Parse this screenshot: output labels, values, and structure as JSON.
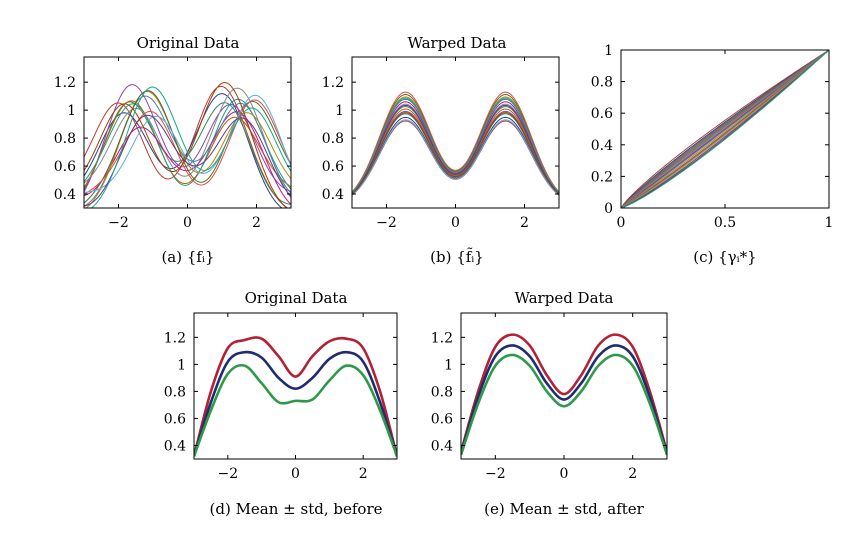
{
  "figure": {
    "panels": [
      {
        "title": "Original Data",
        "caption": "(a) {fᵢ}"
      },
      {
        "title": "Warped Data",
        "caption": "(b) {f̃ᵢ}"
      },
      {
        "title": "",
        "caption": "(c) {γᵢ*}"
      },
      {
        "title": "Original Data",
        "caption": "(d) Mean ± std, before"
      },
      {
        "title": "Warped Data",
        "caption": "(e) Mean ± std, after"
      }
    ]
  },
  "colors": {
    "mean": "#1f2d6e",
    "upper": "#b22234",
    "lower": "#2e9a48",
    "family": [
      "#c0392b",
      "#2c3e8f",
      "#2e8b57",
      "#8e44ad",
      "#d35400",
      "#16a085",
      "#7f8c8d",
      "#c71585",
      "#4682b4",
      "#b8860b",
      "#556b2f",
      "#e74c3c",
      "#5dade2",
      "#a04000",
      "#6c3483",
      "#17a589"
    ]
  },
  "chart_data": [
    {
      "type": "line",
      "title": "Original Data",
      "caption": "(a) {fᵢ}",
      "xlim": [
        -3,
        3
      ],
      "ylim": [
        0.3,
        1.38
      ],
      "xticks": [
        -2,
        0,
        2
      ],
      "xtick_labels": [
        "−2",
        "0",
        "2"
      ],
      "yticks": [
        0.4,
        0.6,
        0.8,
        1,
        1.2
      ],
      "ytick_labels": [
        "0.4",
        "0.6",
        "0.8",
        "1",
        "1.2"
      ],
      "family": {
        "count": 16,
        "shifts": [
          -0.5,
          -0.4,
          -0.3,
          -0.2,
          -0.15,
          -0.05,
          0,
          0.05,
          0.15,
          0.25,
          0.35,
          0.45,
          0.55,
          -0.35,
          0.2,
          0.4
        ],
        "amps": [
          1.22,
          1.18,
          1.2,
          1.25,
          1.1,
          1.15,
          1.2,
          1.05,
          1.22,
          1.18,
          1.2,
          1.12,
          1.15,
          1.25,
          1.08,
          1.22
        ]
      }
    },
    {
      "type": "line",
      "title": "Warped Data",
      "caption": "(b) {f̃ᵢ}",
      "xlim": [
        -3,
        3
      ],
      "ylim": [
        0.3,
        1.38
      ],
      "xticks": [
        -2,
        0,
        2
      ],
      "xtick_labels": [
        "−2",
        "0",
        "2"
      ],
      "yticks": [
        0.4,
        0.6,
        0.8,
        1,
        1.2
      ],
      "ytick_labels": [
        "0.4",
        "0.6",
        "0.8",
        "1",
        "1.2"
      ],
      "family": {
        "count": 16,
        "amps": [
          1.02,
          1.05,
          1.08,
          1.1,
          1.12,
          1.14,
          1.16,
          1.18,
          1.2,
          1.22,
          1.24,
          1.26,
          1.03,
          1.09,
          1.15,
          1.21
        ]
      }
    },
    {
      "type": "line",
      "title": "",
      "caption": "(c) {γᵢ*}",
      "xlim": [
        0,
        1
      ],
      "ylim": [
        0,
        1
      ],
      "xticks": [
        0,
        0.5,
        1
      ],
      "xtick_labels": [
        "0",
        "0.5",
        "1"
      ],
      "yticks": [
        0,
        0.2,
        0.4,
        0.6,
        0.8,
        1
      ],
      "ytick_labels": [
        "0",
        "0.2",
        "0.4",
        "0.6",
        "0.8",
        "1"
      ],
      "family": {
        "count": 16,
        "exponents": [
          0.85,
          0.88,
          0.9,
          0.92,
          0.94,
          0.96,
          0.98,
          1.0,
          1.02,
          1.05,
          1.08,
          1.1,
          1.12,
          1.15,
          1.18,
          1.2
        ]
      }
    },
    {
      "type": "line",
      "title": "Original Data",
      "caption": "(d) Mean ± std, before",
      "xlim": [
        -3,
        3
      ],
      "ylim": [
        0.3,
        1.38
      ],
      "xticks": [
        -2,
        0,
        2
      ],
      "xtick_labels": [
        "−2",
        "0",
        "2"
      ],
      "yticks": [
        0.4,
        0.6,
        0.8,
        1,
        1.2
      ],
      "ytick_labels": [
        "0.4",
        "0.6",
        "0.8",
        "1",
        "1.2"
      ],
      "x": [
        -3,
        -2.5,
        -2,
        -1.5,
        -1,
        -0.5,
        0,
        0.5,
        1,
        1.5,
        2,
        2.5,
        3
      ],
      "series": [
        {
          "role": "upper",
          "values": [
            0.32,
            0.8,
            1.12,
            1.18,
            1.19,
            1.06,
            0.91,
            1.06,
            1.17,
            1.19,
            1.12,
            0.8,
            0.32
          ]
        },
        {
          "role": "mean",
          "values": [
            0.32,
            0.72,
            1.02,
            1.09,
            1.05,
            0.9,
            0.82,
            0.9,
            1.04,
            1.09,
            1.02,
            0.72,
            0.32
          ]
        },
        {
          "role": "lower",
          "values": [
            0.32,
            0.66,
            0.93,
            0.99,
            0.86,
            0.72,
            0.73,
            0.74,
            0.88,
            0.99,
            0.92,
            0.66,
            0.32
          ]
        }
      ]
    },
    {
      "type": "line",
      "title": "Warped Data",
      "caption": "(e) Mean ± std, after",
      "xlim": [
        -3,
        3
      ],
      "ylim": [
        0.3,
        1.38
      ],
      "xticks": [
        -2,
        0,
        2
      ],
      "xtick_labels": [
        "−2",
        "0",
        "2"
      ],
      "yticks": [
        0.4,
        0.6,
        0.8,
        1,
        1.2
      ],
      "ytick_labels": [
        "0.4",
        "0.6",
        "0.8",
        "1",
        "1.2"
      ],
      "x": [
        -3,
        -2.5,
        -2,
        -1.5,
        -1,
        -0.5,
        0,
        0.5,
        1,
        1.5,
        2,
        2.5,
        3
      ],
      "series": [
        {
          "role": "upper",
          "values": [
            0.35,
            0.8,
            1.13,
            1.22,
            1.14,
            0.92,
            0.78,
            0.92,
            1.14,
            1.22,
            1.13,
            0.8,
            0.35
          ]
        },
        {
          "role": "mean",
          "values": [
            0.34,
            0.76,
            1.06,
            1.14,
            1.06,
            0.86,
            0.74,
            0.86,
            1.06,
            1.14,
            1.06,
            0.76,
            0.34
          ]
        },
        {
          "role": "lower",
          "values": [
            0.33,
            0.71,
            0.99,
            1.07,
            0.99,
            0.8,
            0.69,
            0.8,
            0.99,
            1.07,
            0.99,
            0.71,
            0.33
          ]
        }
      ]
    }
  ]
}
